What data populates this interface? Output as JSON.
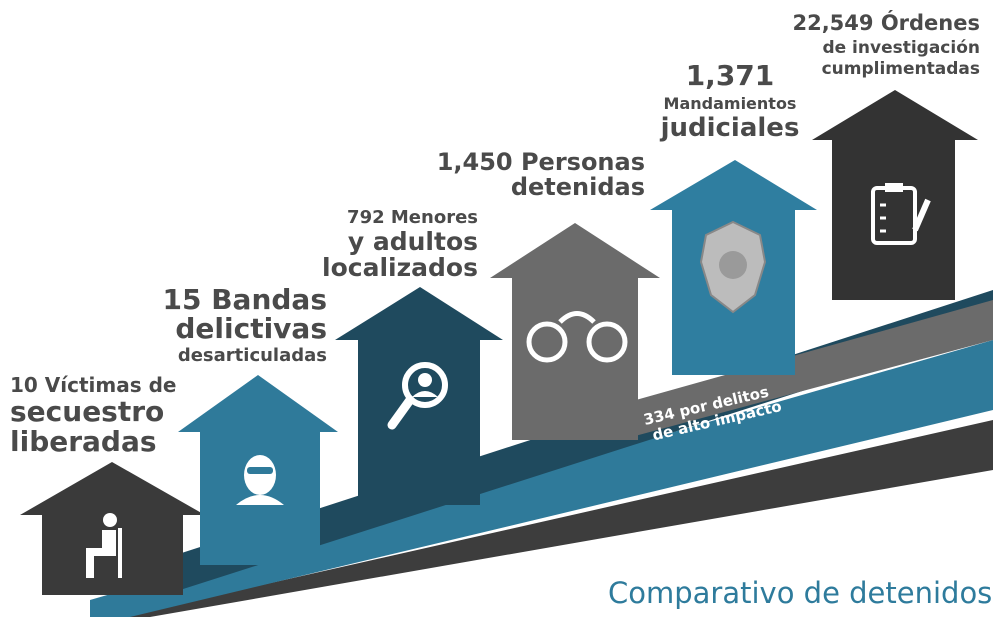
{
  "items": [
    {
      "lines": [
        "10 Víctimas de",
        "secuestro",
        "liberadas"
      ]
    },
    {
      "lines": [
        "15 Bandas",
        "delictivas",
        "desarticuladas"
      ]
    },
    {
      "lines": [
        "792 Menores",
        "y adultos",
        "localizados"
      ]
    },
    {
      "lines": [
        "1,450 Personas",
        "detenidas"
      ]
    },
    {
      "lines": [
        "1,371",
        "Mandamientos",
        "judiciales"
      ]
    },
    {
      "lines": [
        "22,549 Órdenes",
        "de investigación",
        "cumplimentadas"
      ]
    }
  ],
  "ribbon": {
    "lines": [
      "334 por delitos",
      "de alto impacto"
    ]
  },
  "footer": {
    "title": "Comparativo de detenidos"
  }
}
